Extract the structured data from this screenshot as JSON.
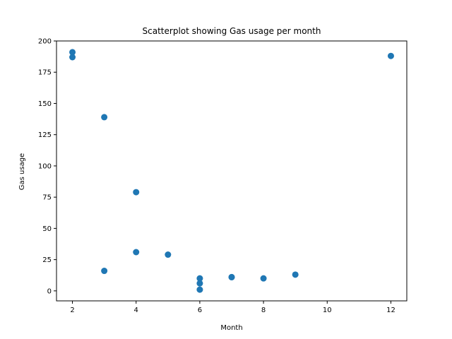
{
  "chart_data": {
    "type": "scatter",
    "title": "Scatterplot showing Gas usage per month",
    "xlabel": "Month",
    "ylabel": "Gas usage",
    "xlim": [
      1.5,
      12.5
    ],
    "ylim": [
      -8,
      200
    ],
    "xticks": [
      2,
      4,
      6,
      8,
      10,
      12
    ],
    "yticks": [
      0,
      25,
      50,
      75,
      100,
      125,
      150,
      175,
      200
    ],
    "grid": false,
    "marker_color": "#1f77b4",
    "points": [
      {
        "x": 2,
        "y": 191
      },
      {
        "x": 2,
        "y": 187
      },
      {
        "x": 3,
        "y": 139
      },
      {
        "x": 3,
        "y": 16
      },
      {
        "x": 4,
        "y": 79
      },
      {
        "x": 4,
        "y": 31
      },
      {
        "x": 5,
        "y": 29
      },
      {
        "x": 6,
        "y": 10
      },
      {
        "x": 6,
        "y": 6
      },
      {
        "x": 6,
        "y": 1
      },
      {
        "x": 7,
        "y": 11
      },
      {
        "x": 7,
        "y": 11
      },
      {
        "x": 8,
        "y": 10
      },
      {
        "x": 9,
        "y": 13
      },
      {
        "x": 12,
        "y": 188
      }
    ]
  }
}
